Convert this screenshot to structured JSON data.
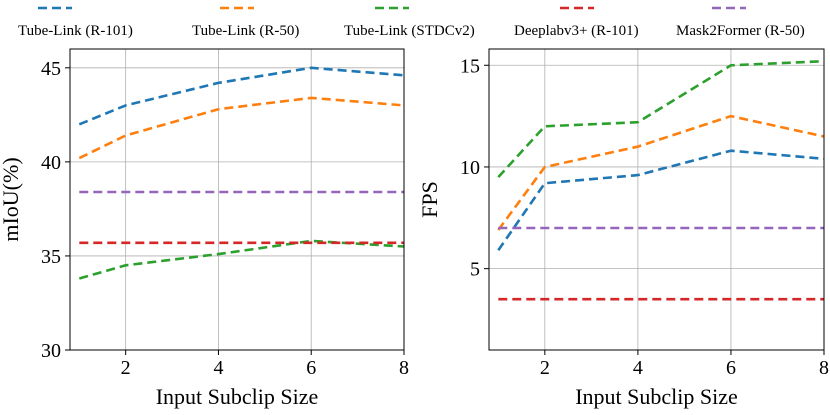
{
  "legend": [
    {
      "label": "Tube-Link (R-101)",
      "color": "#1f77b4"
    },
    {
      "label": "Tube-Link (R-50)",
      "color": "#ff7f0e"
    },
    {
      "label": "Tube-Link (STDCv2)",
      "color": "#2ca02c"
    },
    {
      "label": "Deeplabv3+ (R-101)",
      "color": "#d62728"
    },
    {
      "label": "Mask2Former (R-50)",
      "color": "#9467bd"
    }
  ],
  "chart_data": [
    {
      "type": "line",
      "xlabel": "Input Subclip Size",
      "ylabel": "mIoU(%)",
      "xlim": [
        0.8,
        8
      ],
      "ylim": [
        30,
        46
      ],
      "xticks": [
        2,
        4,
        6,
        8
      ],
      "yticks": [
        30,
        35,
        40,
        45
      ],
      "grid": true,
      "line_style": "dashed",
      "series": [
        {
          "name": "Tube-Link (R-101)",
          "color": "#1f77b4",
          "x": [
            1,
            2,
            4,
            6,
            8
          ],
          "y": [
            42.0,
            43.0,
            44.2,
            45.0,
            44.6
          ]
        },
        {
          "name": "Tube-Link (R-50)",
          "color": "#ff7f0e",
          "x": [
            1,
            2,
            4,
            6,
            8
          ],
          "y": [
            40.2,
            41.4,
            42.8,
            43.4,
            43.0
          ]
        },
        {
          "name": "Tube-Link (STDCv2)",
          "color": "#2ca02c",
          "x": [
            1,
            2,
            4,
            6,
            8
          ],
          "y": [
            33.8,
            34.5,
            35.1,
            35.8,
            35.5
          ]
        },
        {
          "name": "Deeplabv3+ (R-101)",
          "color": "#d62728",
          "x": [
            1,
            8
          ],
          "y": [
            35.7,
            35.7
          ]
        },
        {
          "name": "Mask2Former (R-50)",
          "color": "#9467bd",
          "x": [
            1,
            8
          ],
          "y": [
            38.4,
            38.4
          ]
        }
      ]
    },
    {
      "type": "line",
      "xlabel": "Input Subclip Size",
      "ylabel": "FPS",
      "xlim": [
        0.8,
        8
      ],
      "ylim": [
        1,
        15.8
      ],
      "xticks": [
        2,
        4,
        6,
        8
      ],
      "yticks": [
        5,
        10,
        15
      ],
      "grid": true,
      "line_style": "dashed",
      "series": [
        {
          "name": "Tube-Link (R-101)",
          "color": "#1f77b4",
          "x": [
            1,
            2,
            4,
            6,
            8
          ],
          "y": [
            5.9,
            9.2,
            9.6,
            10.8,
            10.4
          ]
        },
        {
          "name": "Tube-Link (R-50)",
          "color": "#ff7f0e",
          "x": [
            1,
            2,
            4,
            6,
            8
          ],
          "y": [
            6.9,
            10.0,
            11.0,
            12.5,
            11.5
          ]
        },
        {
          "name": "Tube-Link (STDCv2)",
          "color": "#2ca02c",
          "x": [
            1,
            2,
            4,
            6,
            8
          ],
          "y": [
            9.5,
            12.0,
            12.2,
            15.0,
            15.2
          ]
        },
        {
          "name": "Deeplabv3+ (R-101)",
          "color": "#d62728",
          "x": [
            1,
            8
          ],
          "y": [
            3.5,
            3.5
          ]
        },
        {
          "name": "Mask2Former (R-50)",
          "color": "#9467bd",
          "x": [
            1,
            8
          ],
          "y": [
            7.0,
            7.0
          ]
        }
      ]
    }
  ]
}
